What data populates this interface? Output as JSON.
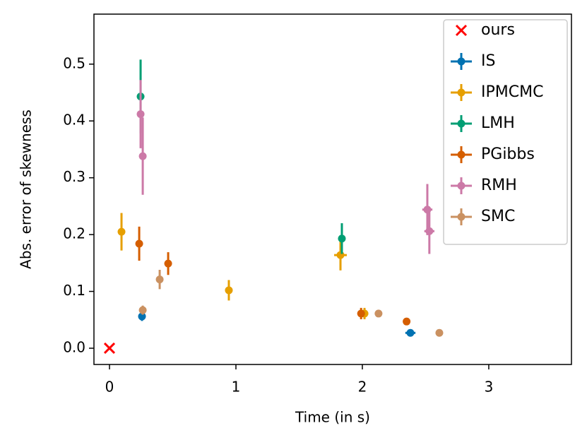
{
  "chart_data": {
    "type": "errorbar",
    "xlabel": "Time (in s)",
    "ylabel": "Abs. error of skewness",
    "xlim": [
      -0.123,
      3.654
    ],
    "ylim": [
      -0.0286,
      0.588
    ],
    "xticks": [
      0,
      1,
      2,
      3
    ],
    "yticks": [
      {
        "value": 0,
        "label": "0.0"
      },
      0.1,
      0.2,
      0.3,
      0.4,
      0.5
    ],
    "legend": "upper right",
    "series": [
      {
        "name": "ours",
        "color": "#ff0000",
        "marker": "x",
        "x": [
          0
        ],
        "values": [
          0
        ]
      },
      {
        "name": "IS",
        "color": "#0072b2",
        "x": [
          0.257,
          2.38
        ],
        "values": [
          0.056,
          0.027
        ],
        "yerr": [
          0.008,
          0.004
        ],
        "xerr": [
          null,
          0.04
        ]
      },
      {
        "name": "IPMCMC",
        "color": "#e69f00",
        "x": [
          0.095,
          0.944,
          1.827,
          2.017
        ],
        "values": [
          0.205,
          0.102,
          0.164,
          0.061
        ],
        "yerr": [
          0.033,
          0.018,
          0.027,
          0.01
        ],
        "xerr": [
          null,
          null,
          0.05,
          0.03
        ]
      },
      {
        "name": "LMH",
        "color": "#009e73",
        "x": [
          0.246,
          1.838
        ],
        "values": [
          0.443,
          0.193
        ],
        "yerr": [
          0.065,
          0.027
        ],
        "xerr": [
          null,
          null
        ]
      },
      {
        "name": "PGibbs",
        "color": "#d55e00",
        "x": [
          0.235,
          0.464,
          1.99,
          2.35
        ],
        "values": [
          0.184,
          0.149,
          0.061,
          0.047
        ],
        "yerr": [
          0.03,
          0.02,
          0.01,
          0.006
        ],
        "xerr": [
          null,
          null,
          null,
          null
        ]
      },
      {
        "name": "RMH",
        "color": "#cc79a7",
        "x": [
          0.246,
          0.263,
          2.514,
          2.53
        ],
        "values": [
          0.412,
          0.338,
          0.244,
          0.206
        ],
        "yerr": [
          0.06,
          0.068,
          0.045,
          0.04
        ],
        "xerr": [
          null,
          null,
          0.04,
          0.04
        ]
      },
      {
        "name": "SMC",
        "color": "#ca9161",
        "x": [
          0.263,
          0.397,
          2.128,
          2.609
        ],
        "values": [
          0.067,
          0.121,
          0.061,
          0.027
        ],
        "yerr": [
          0.008,
          0.017,
          0.005,
          0.004
        ],
        "xerr": [
          null,
          null,
          null,
          null
        ]
      }
    ]
  }
}
